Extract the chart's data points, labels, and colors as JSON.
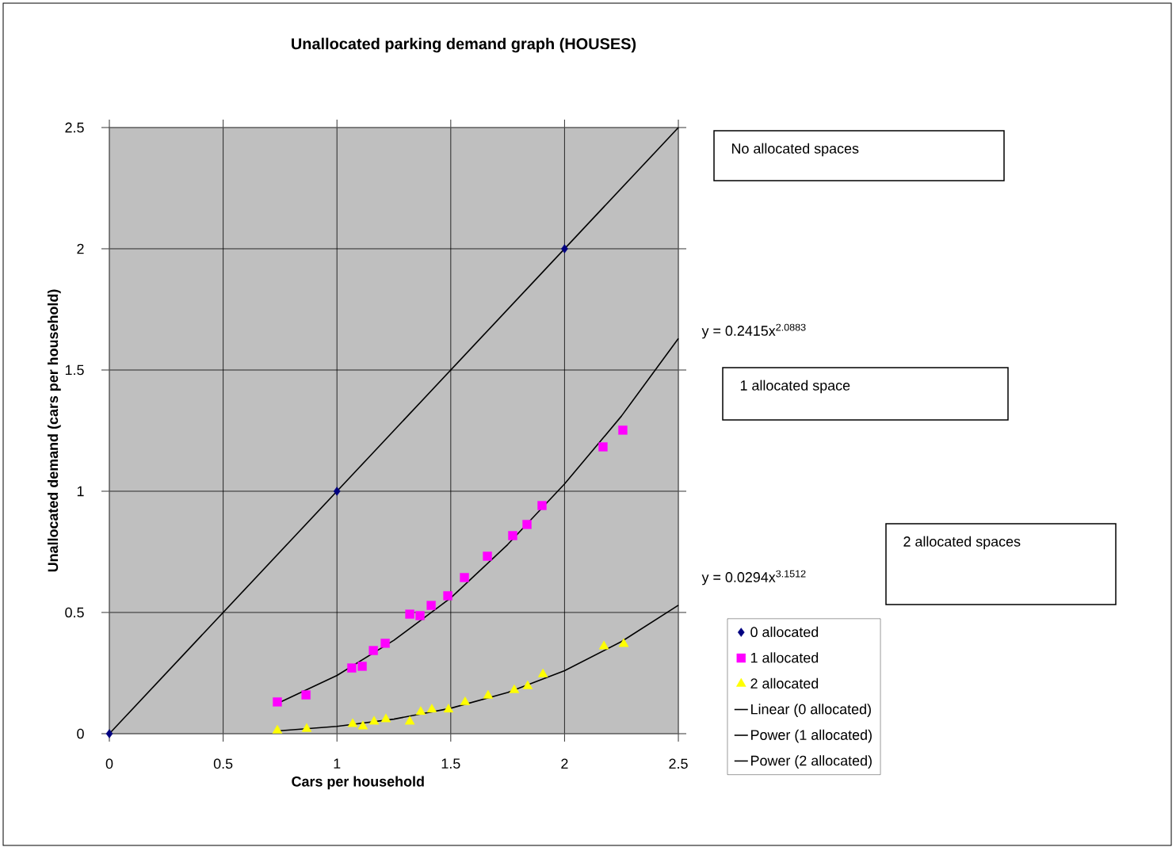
{
  "chart_data": {
    "type": "scatter",
    "title": "Unallocated parking demand graph (HOUSES)",
    "xlabel": "Cars per household",
    "ylabel": "Unallocated demand (cars per household)",
    "xlim": [
      0,
      2.5
    ],
    "ylim": [
      0,
      2.5
    ],
    "xticks": [
      0,
      0.5,
      1,
      1.5,
      2,
      2.5
    ],
    "yticks": [
      0,
      0.5,
      1,
      1.5,
      2,
      2.5
    ],
    "grid": true,
    "legend": "bottom right",
    "annotations": [
      "y = 0.2415x$^{2.0883}$",
      "y = 0.0294x$^{3.1512}$",
      "No allocated spaces",
      "1 allocated space",
      "2 allocated spaces"
    ],
    "series": [
      {
        "name": "0 allocated",
        "marker": "diamond",
        "color": "#000080",
        "x": [
          0,
          1,
          2
        ],
        "values": [
          0,
          1,
          2
        ]
      },
      {
        "name": "1 allocated",
        "marker": "square",
        "color": "#ff00ff",
        "x": [
          0.738,
          0.864,
          1.065,
          1.111,
          1.16,
          1.212,
          1.32,
          1.365,
          1.414,
          1.487,
          1.56,
          1.661,
          1.772,
          1.835,
          1.901,
          2.169,
          2.256
        ],
        "values": [
          0.131,
          0.16,
          0.271,
          0.278,
          0.343,
          0.373,
          0.493,
          0.487,
          0.529,
          0.569,
          0.644,
          0.732,
          0.817,
          0.863,
          0.941,
          1.183,
          1.252
        ]
      },
      {
        "name": "2 allocated",
        "marker": "triangle",
        "color": "#ffff00",
        "x": [
          0.738,
          0.867,
          1.069,
          1.114,
          1.163,
          1.215,
          1.32,
          1.368,
          1.417,
          1.49,
          1.563,
          1.664,
          1.779,
          1.838,
          1.905,
          2.173,
          2.26
        ],
        "values": [
          0.013,
          0.02,
          0.04,
          0.03,
          0.05,
          0.06,
          0.05,
          0.09,
          0.1,
          0.1,
          0.13,
          0.157,
          0.18,
          0.196,
          0.245,
          0.36,
          0.37
        ]
      },
      {
        "name": "Linear (0 allocated)",
        "type": "line",
        "color": "#000000",
        "x": [
          0,
          2.5
        ],
        "values": [
          0,
          2.5
        ]
      },
      {
        "name": "Power (1 allocated)",
        "type": "line",
        "color": "#000000",
        "x": [
          0.75,
          1,
          1.25,
          1.5,
          1.75,
          2,
          2.25,
          2.5
        ],
        "values": [
          0.13,
          0.24,
          0.385,
          0.56,
          0.78,
          1.03,
          1.31,
          1.63
        ]
      },
      {
        "name": "Power (2 allocated)",
        "type": "line",
        "color": "#000000",
        "x": [
          0.75,
          1,
          1.25,
          1.5,
          1.75,
          2,
          2.25,
          2.5
        ],
        "values": [
          0.012,
          0.03,
          0.06,
          0.105,
          0.17,
          0.26,
          0.38,
          0.53
        ]
      }
    ]
  }
}
